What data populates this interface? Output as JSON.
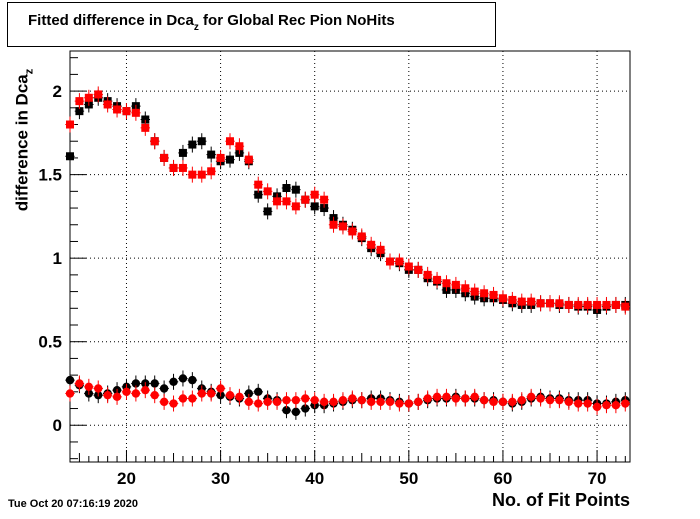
{
  "title_main": "Fitted difference in Dca",
  "title_sub": "z",
  "title_suffix": " for Global Rec Pion NoHits",
  "ylabel_main": "difference in Dca",
  "ylabel_sub": "z",
  "xlabel": "No. of Fit Points",
  "timestamp": "Tue Oct 20 07:16:19 2020",
  "colors": {
    "black_series": "#000000",
    "red_series": "#ff0000",
    "grid": "#000000"
  },
  "chart_data": {
    "type": "scatter",
    "xlim": [
      14,
      73.5
    ],
    "ylim": [
      -0.22,
      2.24
    ],
    "xticks": [
      20,
      30,
      40,
      50,
      60,
      70
    ],
    "yticks": [
      0,
      0.5,
      1,
      1.5,
      2
    ],
    "xtick_labels": [
      "20",
      "30",
      "40",
      "50",
      "60",
      "70"
    ],
    "ytick_labels": [
      "0",
      "0.5",
      "1",
      "1.5",
      "2"
    ],
    "grid": true,
    "x": [
      14,
      15,
      16,
      17,
      18,
      19,
      20,
      21,
      22,
      23,
      24,
      25,
      26,
      27,
      28,
      29,
      30,
      31,
      32,
      33,
      34,
      35,
      36,
      37,
      38,
      39,
      40,
      41,
      42,
      43,
      44,
      45,
      46,
      47,
      48,
      49,
      50,
      51,
      52,
      53,
      54,
      55,
      56,
      57,
      58,
      59,
      60,
      61,
      62,
      63,
      64,
      65,
      66,
      67,
      68,
      69,
      70,
      71,
      72,
      73
    ],
    "series": [
      {
        "marker": "square",
        "color": "#000000",
        "values": [
          1.61,
          1.88,
          1.92,
          1.96,
          1.94,
          1.91,
          1.88,
          1.91,
          1.83,
          1.7,
          1.6,
          1.54,
          1.63,
          1.68,
          1.7,
          1.62,
          1.58,
          1.59,
          1.63,
          1.58,
          1.38,
          1.28,
          1.37,
          1.42,
          1.41,
          1.35,
          1.31,
          1.3,
          1.24,
          1.2,
          1.17,
          1.12,
          1.06,
          1.03,
          0.98,
          0.97,
          0.93,
          0.93,
          0.88,
          0.86,
          0.81,
          0.81,
          0.79,
          0.77,
          0.76,
          0.76,
          0.75,
          0.73,
          0.72,
          0.72,
          0.73,
          0.73,
          0.72,
          0.72,
          0.71,
          0.71,
          0.69,
          0.71,
          0.72,
          0.72
        ]
      },
      {
        "marker": "square",
        "color": "#ff0000",
        "values": [
          1.8,
          1.94,
          1.96,
          1.98,
          1.92,
          1.89,
          1.88,
          1.87,
          1.78,
          1.7,
          1.6,
          1.54,
          1.54,
          1.5,
          1.5,
          1.52,
          1.6,
          1.7,
          1.67,
          1.59,
          1.44,
          1.4,
          1.34,
          1.34,
          1.31,
          1.35,
          1.38,
          1.35,
          1.2,
          1.19,
          1.16,
          1.13,
          1.08,
          1.05,
          0.98,
          0.98,
          0.95,
          0.93,
          0.9,
          0.87,
          0.85,
          0.84,
          0.82,
          0.8,
          0.79,
          0.78,
          0.76,
          0.75,
          0.74,
          0.74,
          0.73,
          0.73,
          0.73,
          0.72,
          0.72,
          0.72,
          0.72,
          0.72,
          0.72,
          0.71
        ]
      },
      {
        "marker": "circle",
        "color": "#000000",
        "values": [
          0.27,
          0.24,
          0.19,
          0.18,
          0.19,
          0.21,
          0.23,
          0.25,
          0.25,
          0.25,
          0.22,
          0.26,
          0.28,
          0.27,
          0.22,
          0.2,
          0.18,
          0.17,
          0.16,
          0.19,
          0.2,
          0.16,
          0.15,
          0.09,
          0.08,
          0.1,
          0.12,
          0.12,
          0.13,
          0.14,
          0.15,
          0.15,
          0.16,
          0.16,
          0.15,
          0.14,
          0.13,
          0.14,
          0.15,
          0.16,
          0.16,
          0.17,
          0.16,
          0.16,
          0.15,
          0.15,
          0.14,
          0.13,
          0.14,
          0.16,
          0.17,
          0.16,
          0.16,
          0.15,
          0.15,
          0.15,
          0.13,
          0.13,
          0.14,
          0.15
        ]
      },
      {
        "marker": "circle",
        "color": "#ff0000",
        "values": [
          0.19,
          0.25,
          0.23,
          0.22,
          0.18,
          0.17,
          0.2,
          0.19,
          0.21,
          0.18,
          0.14,
          0.13,
          0.16,
          0.16,
          0.19,
          0.19,
          0.22,
          0.18,
          0.17,
          0.14,
          0.13,
          0.14,
          0.14,
          0.15,
          0.15,
          0.16,
          0.15,
          0.14,
          0.14,
          0.15,
          0.16,
          0.15,
          0.14,
          0.14,
          0.14,
          0.13,
          0.13,
          0.14,
          0.16,
          0.17,
          0.17,
          0.16,
          0.16,
          0.17,
          0.15,
          0.14,
          0.14,
          0.14,
          0.15,
          0.17,
          0.16,
          0.15,
          0.15,
          0.14,
          0.13,
          0.13,
          0.11,
          0.12,
          0.12,
          0.13
        ]
      }
    ]
  }
}
